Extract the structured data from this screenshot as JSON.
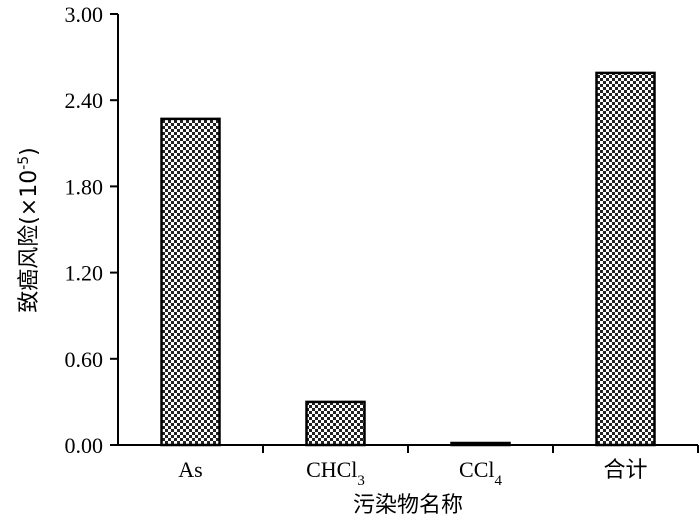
{
  "chart_data": {
    "type": "bar",
    "xlabel": "污染物名称",
    "ylabel": "致癌风险(×10",
    "ylabel_superscript": "-5",
    "ylabel_close": ")",
    "ylim": [
      0,
      3.0
    ],
    "yticks": [
      0.0,
      0.6,
      1.2,
      1.8,
      2.4,
      3.0
    ],
    "ytick_labels": [
      "0.00",
      "0.60",
      "1.20",
      "1.80",
      "2.40",
      "3.00"
    ],
    "categories": [
      {
        "base": "As",
        "sub": ""
      },
      {
        "base": "CHCl",
        "sub": "3"
      },
      {
        "base": "CCl",
        "sub": "4"
      },
      {
        "base": "合计",
        "sub": ""
      }
    ],
    "values": [
      2.27,
      0.3,
      0.01,
      2.59
    ],
    "bar_fill": "crosshatch-pattern",
    "bar_color": "#000000",
    "grid": false,
    "legend": "none"
  }
}
